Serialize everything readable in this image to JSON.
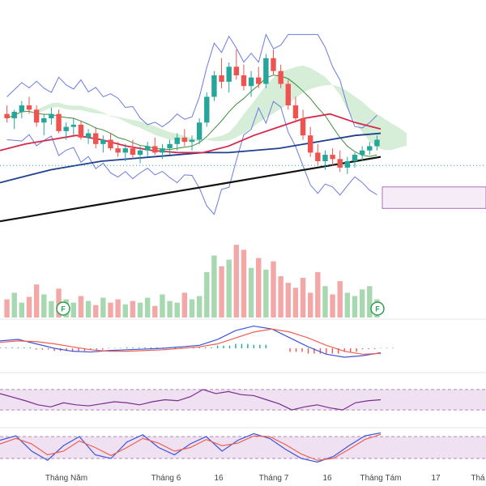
{
  "colors": {
    "up": "#26a69a",
    "down": "#ef5350",
    "bb": "#6b7be0",
    "sma_red": "#d6294a",
    "sma_blue": "#1f3f8f",
    "sma_black": "#111111",
    "sma_green": "#3b8e3a",
    "sma_orange": "#d9772f",
    "cloud_green": "#a5d6a7",
    "cloud_red": "#f4b6b6",
    "vol_up": "#a7d8b0",
    "vol_down": "#f4a7a7",
    "macd_line": "#3b55d9",
    "signal_line": "#f06050",
    "rsi_line": "#7b2c8f",
    "stoch_k": "#3b55d9",
    "stoch_d": "#f06050",
    "osc_band": "#ead5ee"
  },
  "x_axis": {
    "ticks": [
      "Tháng Năm",
      "Tháng 6",
      "16",
      "Tháng 7",
      "16",
      "Tháng Tám",
      "17",
      "Thá"
    ]
  },
  "badges": [
    "F",
    "F"
  ],
  "chart_data": [
    {
      "type": "candlestick",
      "panel": "price",
      "note": "values in relative price units (0-100); price axis labels not shown",
      "candles": [
        {
          "o": 62,
          "h": 66,
          "l": 58,
          "c": 60
        },
        {
          "o": 60,
          "h": 64,
          "l": 55,
          "c": 63
        },
        {
          "o": 63,
          "h": 68,
          "l": 60,
          "c": 66
        },
        {
          "o": 66,
          "h": 70,
          "l": 62,
          "c": 64
        },
        {
          "o": 64,
          "h": 66,
          "l": 56,
          "c": 58
        },
        {
          "o": 58,
          "h": 62,
          "l": 52,
          "c": 60
        },
        {
          "o": 60,
          "h": 65,
          "l": 57,
          "c": 62
        },
        {
          "o": 62,
          "h": 64,
          "l": 53,
          "c": 54
        },
        {
          "o": 54,
          "h": 58,
          "l": 50,
          "c": 56
        },
        {
          "o": 56,
          "h": 60,
          "l": 52,
          "c": 57
        },
        {
          "o": 57,
          "h": 59,
          "l": 50,
          "c": 51
        },
        {
          "o": 51,
          "h": 55,
          "l": 48,
          "c": 53
        },
        {
          "o": 53,
          "h": 56,
          "l": 46,
          "c": 48
        },
        {
          "o": 48,
          "h": 52,
          "l": 44,
          "c": 50
        },
        {
          "o": 50,
          "h": 53,
          "l": 45,
          "c": 46
        },
        {
          "o": 46,
          "h": 49,
          "l": 42,
          "c": 44
        },
        {
          "o": 44,
          "h": 48,
          "l": 40,
          "c": 46
        },
        {
          "o": 46,
          "h": 50,
          "l": 41,
          "c": 43
        },
        {
          "o": 43,
          "h": 47,
          "l": 39,
          "c": 45
        },
        {
          "o": 45,
          "h": 49,
          "l": 42,
          "c": 47
        },
        {
          "o": 47,
          "h": 51,
          "l": 43,
          "c": 44
        },
        {
          "o": 44,
          "h": 48,
          "l": 41,
          "c": 46
        },
        {
          "o": 46,
          "h": 50,
          "l": 43,
          "c": 48
        },
        {
          "o": 48,
          "h": 53,
          "l": 45,
          "c": 51
        },
        {
          "o": 51,
          "h": 55,
          "l": 47,
          "c": 49
        },
        {
          "o": 49,
          "h": 52,
          "l": 45,
          "c": 50
        },
        {
          "o": 50,
          "h": 60,
          "l": 48,
          "c": 58
        },
        {
          "o": 58,
          "h": 72,
          "l": 56,
          "c": 70
        },
        {
          "o": 70,
          "h": 82,
          "l": 68,
          "c": 80
        },
        {
          "o": 80,
          "h": 88,
          "l": 74,
          "c": 77
        },
        {
          "o": 77,
          "h": 86,
          "l": 72,
          "c": 84
        },
        {
          "o": 84,
          "h": 92,
          "l": 78,
          "c": 80
        },
        {
          "o": 80,
          "h": 85,
          "l": 73,
          "c": 75
        },
        {
          "o": 75,
          "h": 82,
          "l": 70,
          "c": 79
        },
        {
          "o": 79,
          "h": 84,
          "l": 74,
          "c": 76
        },
        {
          "o": 76,
          "h": 90,
          "l": 74,
          "c": 88
        },
        {
          "o": 88,
          "h": 92,
          "l": 80,
          "c": 82
        },
        {
          "o": 82,
          "h": 85,
          "l": 74,
          "c": 76
        },
        {
          "o": 76,
          "h": 78,
          "l": 64,
          "c": 66
        },
        {
          "o": 66,
          "h": 70,
          "l": 58,
          "c": 60
        },
        {
          "o": 60,
          "h": 64,
          "l": 50,
          "c": 52
        },
        {
          "o": 52,
          "h": 56,
          "l": 42,
          "c": 44
        },
        {
          "o": 44,
          "h": 48,
          "l": 38,
          "c": 40
        },
        {
          "o": 40,
          "h": 45,
          "l": 36,
          "c": 43
        },
        {
          "o": 43,
          "h": 46,
          "l": 38,
          "c": 41
        },
        {
          "o": 41,
          "h": 45,
          "l": 35,
          "c": 37
        },
        {
          "o": 37,
          "h": 42,
          "l": 34,
          "c": 40
        },
        {
          "o": 40,
          "h": 44,
          "l": 37,
          "c": 43
        },
        {
          "o": 43,
          "h": 47,
          "l": 40,
          "c": 45
        },
        {
          "o": 45,
          "h": 49,
          "l": 43,
          "c": 47
        },
        {
          "o": 47,
          "h": 52,
          "l": 45,
          "c": 50
        }
      ],
      "moving_averages": [
        {
          "color": "sma_black",
          "values": [
            12,
            14,
            16,
            18,
            20,
            22,
            24,
            26,
            28,
            30,
            32,
            34,
            36,
            38,
            40,
            42
          ]
        },
        {
          "color": "sma_blue",
          "values": [
            30,
            33,
            36,
            38,
            40,
            41,
            42,
            43,
            44,
            44,
            45,
            46,
            48,
            50,
            52,
            53
          ]
        },
        {
          "color": "sma_red",
          "values": [
            45,
            48,
            50,
            52,
            50,
            47,
            45,
            44,
            44,
            47,
            52,
            56,
            60,
            62,
            58,
            55
          ]
        }
      ]
    },
    {
      "type": "bar",
      "panel": "volume",
      "note": "relative volume (0-100)",
      "values": [
        22,
        30,
        18,
        25,
        40,
        28,
        20,
        35,
        22,
        18,
        26,
        20,
        15,
        24,
        18,
        22,
        16,
        20,
        18,
        24,
        14,
        28,
        20,
        18,
        30,
        22,
        26,
        55,
        75,
        62,
        70,
        88,
        82,
        60,
        72,
        58,
        68,
        50,
        42,
        36,
        48,
        30,
        55,
        38,
        28,
        44,
        30,
        26,
        34,
        38,
        22
      ]
    },
    {
      "type": "line",
      "panel": "macd",
      "series": [
        {
          "color": "macd_line",
          "values": [
            10,
            12,
            6,
            0,
            -4,
            -5,
            -3,
            -2,
            -1,
            0,
            2,
            4,
            12,
            24,
            30,
            26,
            14,
            2,
            -8,
            -12,
            -10,
            -6
          ]
        },
        {
          "color": "signal_line",
          "values": [
            8,
            10,
            9,
            6,
            2,
            -2,
            -4,
            -4,
            -3,
            -2,
            0,
            2,
            6,
            14,
            22,
            26,
            22,
            14,
            4,
            -4,
            -8,
            -7
          ]
        }
      ]
    },
    {
      "type": "line",
      "panel": "rsi",
      "ylim": [
        0,
        100
      ],
      "series": [
        {
          "color": "rsi_line",
          "values": [
            62,
            55,
            48,
            40,
            36,
            44,
            40,
            38,
            42,
            46,
            44,
            40,
            46,
            50,
            48,
            56,
            70,
            62,
            66,
            60,
            58,
            50,
            42,
            30,
            36,
            40,
            34,
            30,
            44,
            48,
            50
          ]
        }
      ]
    },
    {
      "type": "line",
      "panel": "stochastic",
      "ylim": [
        0,
        100
      ],
      "series": [
        {
          "color": "stoch_k",
          "values": [
            70,
            82,
            40,
            15,
            55,
            80,
            30,
            20,
            65,
            85,
            50,
            30,
            60,
            80,
            40,
            70,
            88,
            75,
            45,
            20,
            10,
            25,
            55,
            82,
            90
          ]
        },
        {
          "color": "stoch_d",
          "values": [
            60,
            75,
            60,
            30,
            40,
            68,
            50,
            28,
            50,
            75,
            62,
            40,
            50,
            72,
            55,
            62,
            82,
            80,
            58,
            32,
            15,
            20,
            45,
            72,
            86
          ]
        }
      ]
    }
  ]
}
